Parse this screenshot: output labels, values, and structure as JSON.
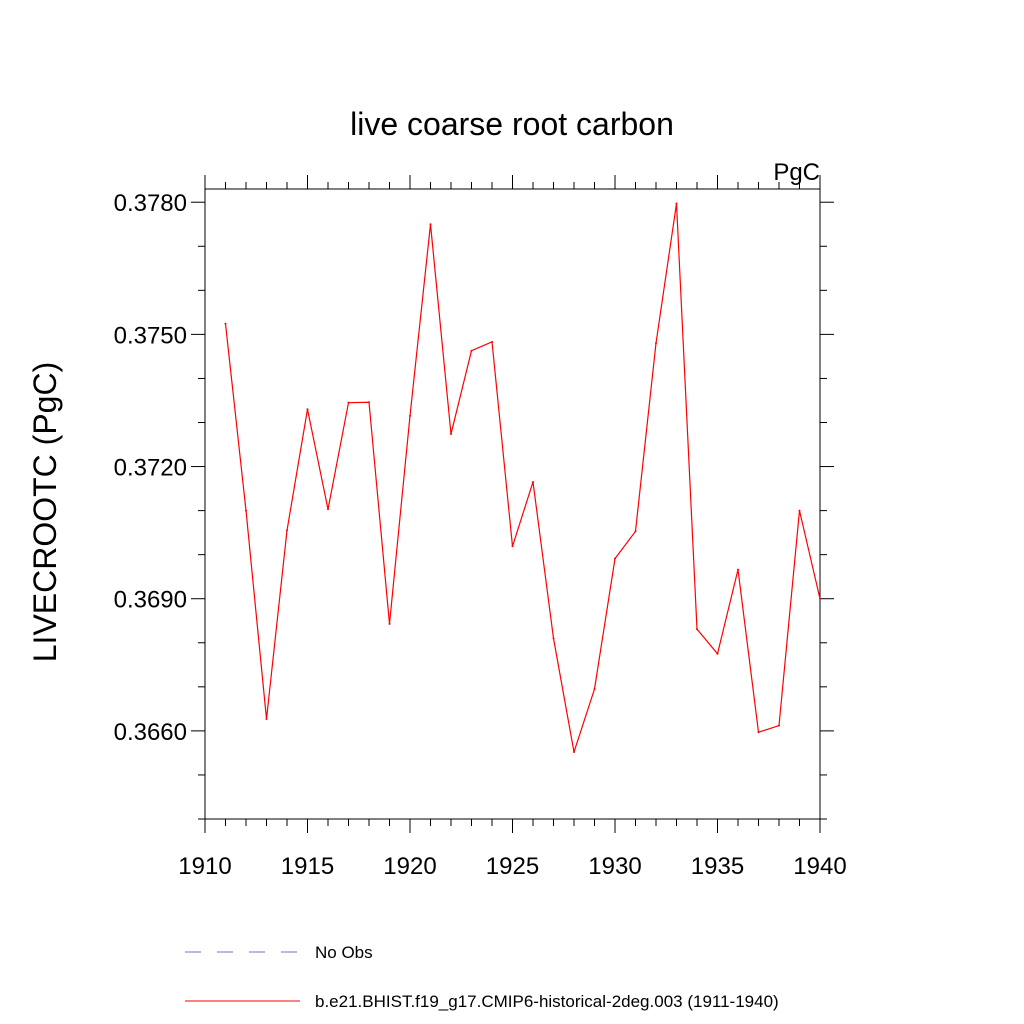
{
  "chart_data": {
    "type": "line",
    "title": "live coarse root carbon",
    "units": "PgC",
    "xlabel": "",
    "ylabel": "LIVECROOTC  (PgC)",
    "xlim": [
      1910,
      1940
    ],
    "ylim": [
      0.364,
      0.3783
    ],
    "xticks": [
      1910,
      1915,
      1920,
      1925,
      1930,
      1935,
      1940
    ],
    "xtick_labels": [
      "1910",
      "1915",
      "1920",
      "1925",
      "1930",
      "1935",
      "1940"
    ],
    "yticks": [
      0.366,
      0.369,
      0.372,
      0.375,
      0.378
    ],
    "ytick_labels": [
      "0.3660",
      "0.3690",
      "0.3720",
      "0.3750",
      "0.3780"
    ],
    "grid": false,
    "legend_position": "bottom",
    "series": [
      {
        "name": "b.e21.BHIST.f19_g17.CMIP6-historical-2deg.003 (1911-1940)",
        "color": "#ff0000",
        "style": "solid",
        "x": [
          1911,
          1912,
          1913,
          1914,
          1915,
          1916,
          1917,
          1918,
          1919,
          1920,
          1921,
          1922,
          1923,
          1924,
          1925,
          1926,
          1927,
          1928,
          1929,
          1930,
          1931,
          1932,
          1933,
          1934,
          1935,
          1936,
          1937,
          1938,
          1939,
          1940
        ],
        "y": [
          0.37524,
          0.371,
          0.36627,
          0.37055,
          0.3733,
          0.37103,
          0.37345,
          0.37346,
          0.36843,
          0.37315,
          0.3775,
          0.37274,
          0.37463,
          0.37483,
          0.37019,
          0.37165,
          0.3681,
          0.36552,
          0.36695,
          0.36991,
          0.37053,
          0.3748,
          0.37797,
          0.36831,
          0.36775,
          0.36966,
          0.36597,
          0.36612,
          0.371,
          0.369
        ]
      }
    ],
    "legend": [
      {
        "label": "No Obs",
        "color": "#7b6fc9",
        "style": "dashed"
      },
      {
        "label": "b.e21.BHIST.f19_g17.CMIP6-historical-2deg.003 (1911-1940)",
        "color": "#ff0000",
        "style": "solid"
      }
    ]
  }
}
